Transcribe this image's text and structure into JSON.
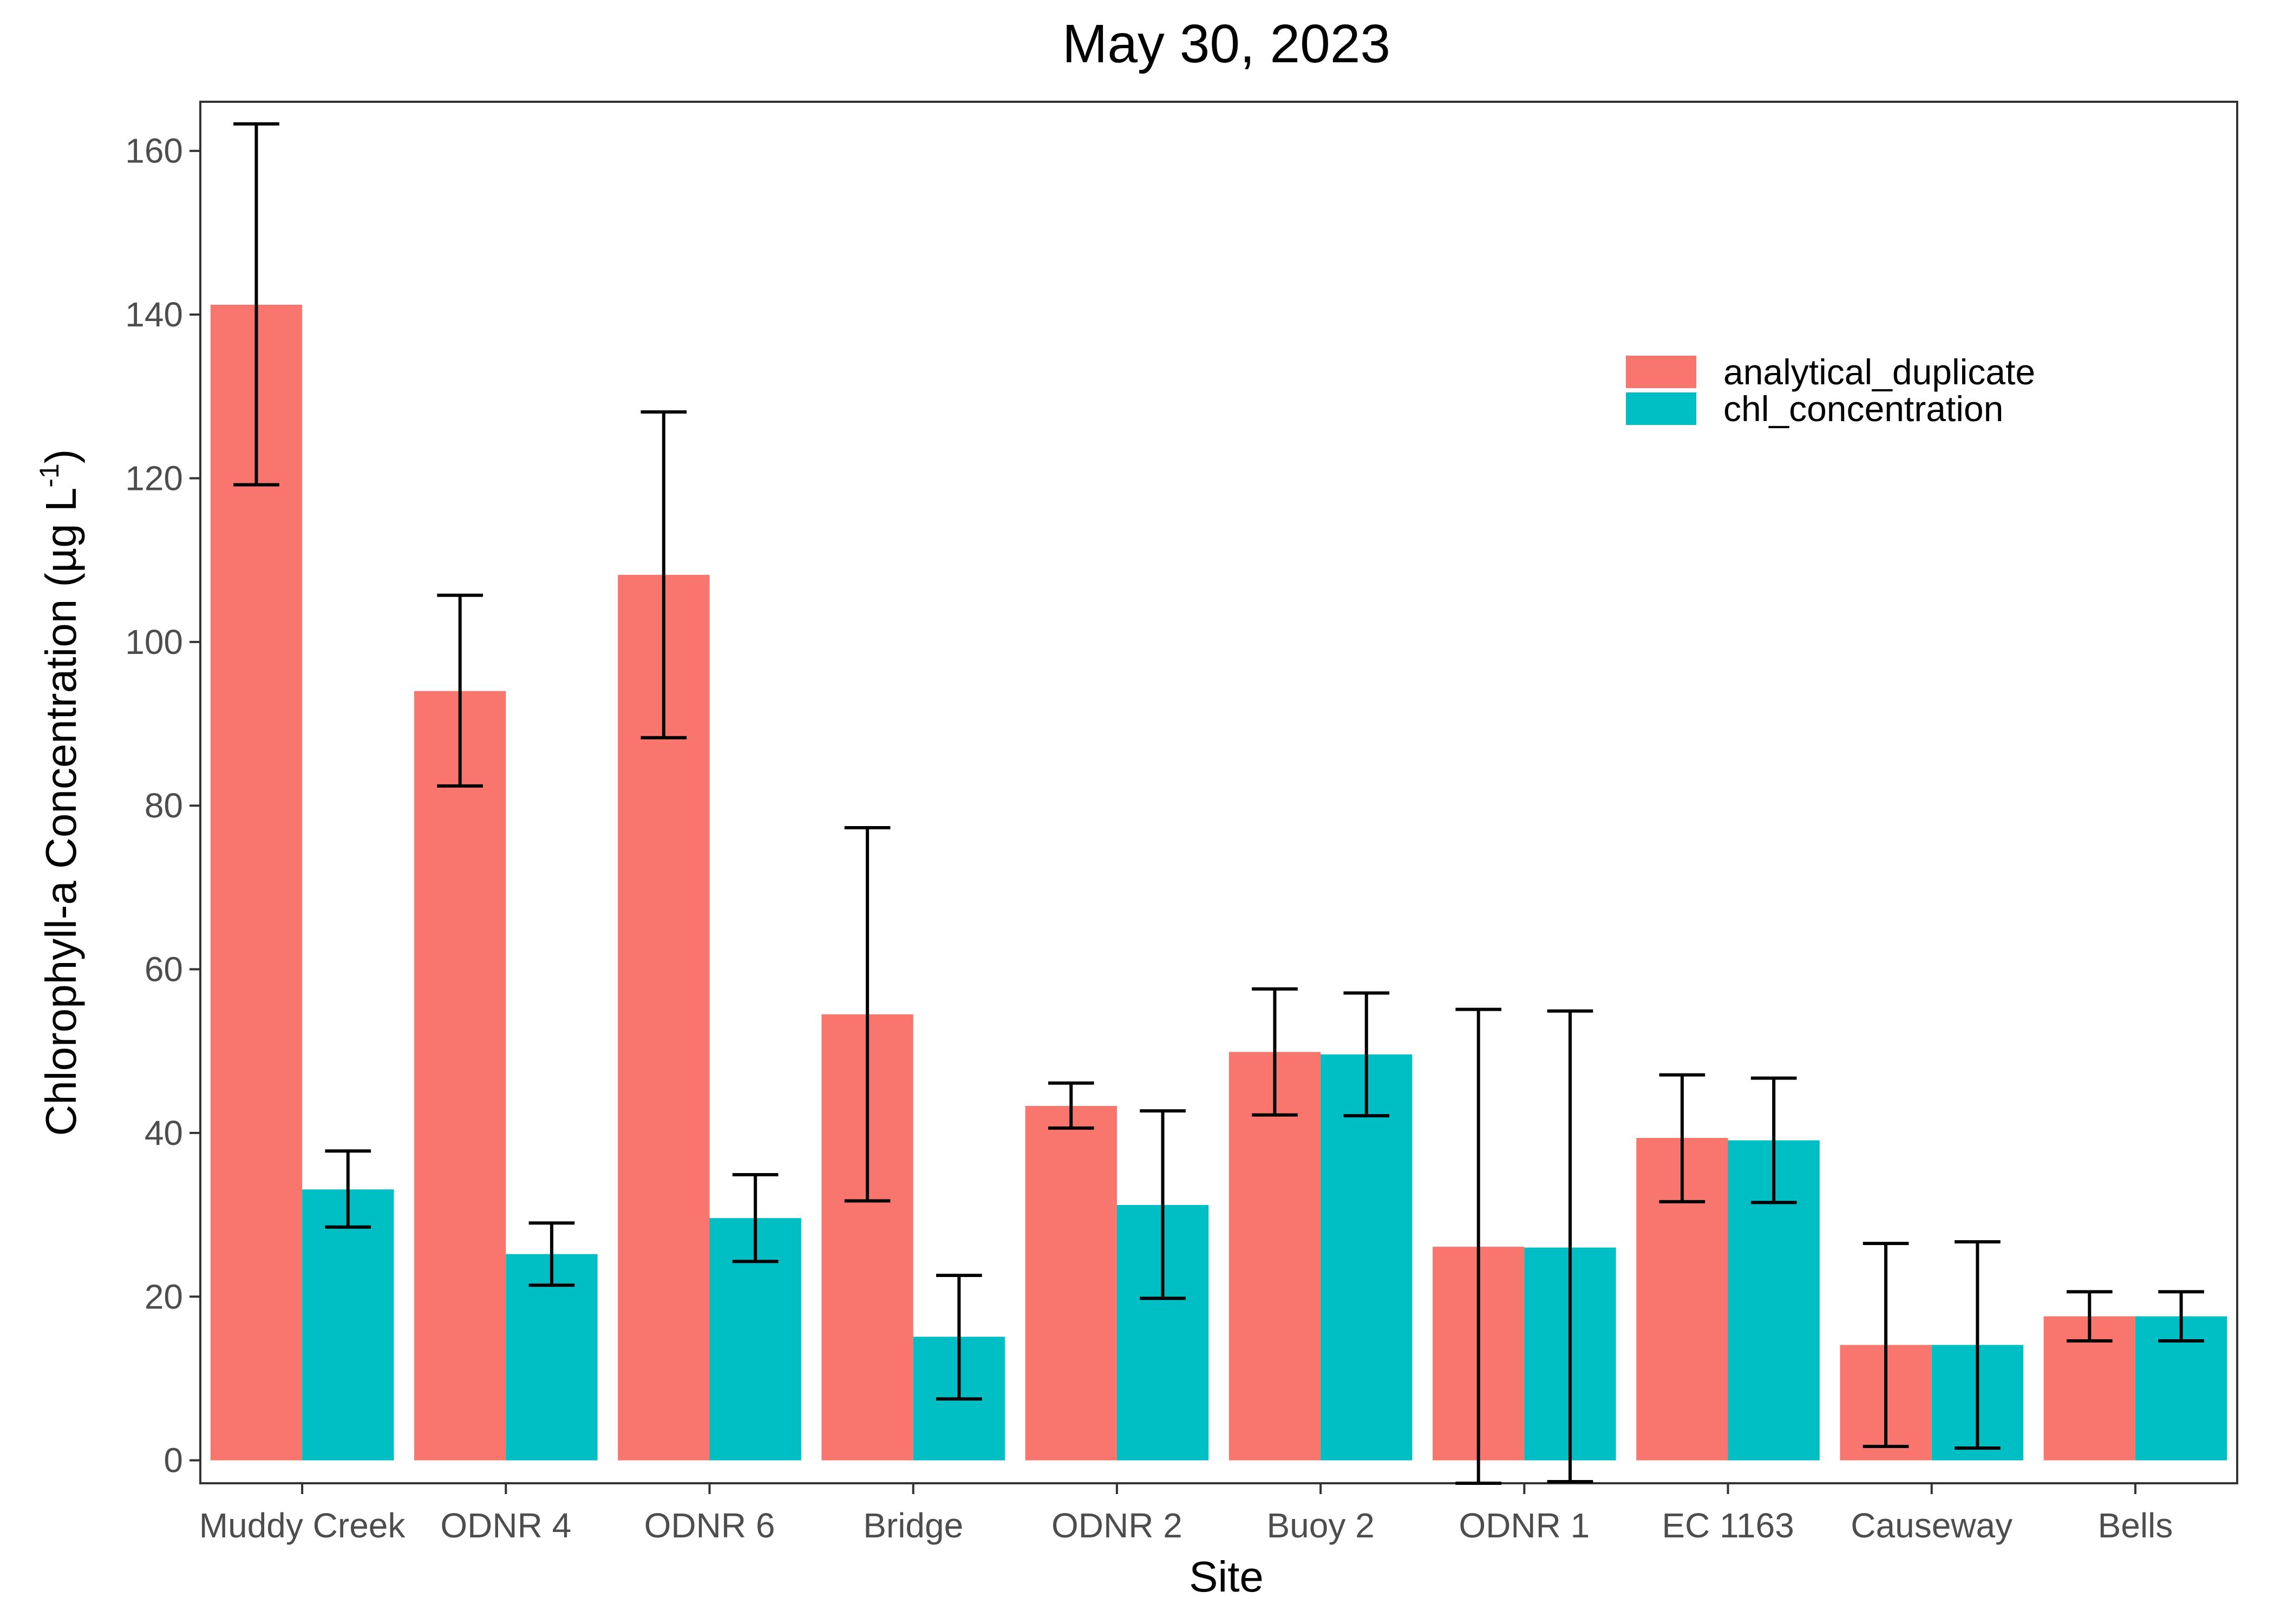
{
  "chart_data": {
    "type": "bar",
    "title": "May 30, 2023",
    "xlabel": "Site",
    "ylabel_main": "Chlorophyll-a Concentration (µg L",
    "ylabel_sup": "-1",
    "ylabel_close": ")",
    "categories": [
      "Muddy Creek",
      "ODNR 4",
      "ODNR 6",
      "Bridge",
      "ODNR 2",
      "Buoy 2",
      "ODNR 1",
      "EC 1163",
      "Causeway",
      "Bells"
    ],
    "series": [
      {
        "name": "analytical_duplicate",
        "color": "#F8766D",
        "values": [
          141.2,
          94.0,
          108.2,
          54.5,
          43.3,
          49.9,
          26.1,
          39.4,
          14.1,
          17.6
        ],
        "error_low": [
          119.2,
          82.4,
          88.3,
          31.7,
          40.6,
          42.2,
          -2.8,
          31.6,
          1.7,
          14.6
        ],
        "error_high": [
          163.3,
          105.7,
          128.1,
          77.3,
          46.1,
          57.6,
          55.1,
          47.1,
          26.5,
          20.6
        ]
      },
      {
        "name": "chl_concentration",
        "color": "#00BFC4",
        "values": [
          33.1,
          25.2,
          29.6,
          15.1,
          31.2,
          49.6,
          26.0,
          39.1,
          14.1,
          17.6
        ],
        "error_low": [
          28.5,
          21.4,
          24.3,
          7.5,
          19.8,
          42.1,
          -2.6,
          31.5,
          1.5,
          14.6
        ],
        "error_high": [
          37.8,
          29.0,
          34.9,
          22.6,
          42.7,
          57.1,
          54.9,
          46.7,
          26.7,
          20.6
        ]
      }
    ],
    "y_ticks": [
      0,
      20,
      40,
      60,
      80,
      100,
      120,
      140,
      160
    ],
    "ylim": [
      -2.8,
      166.0
    ],
    "legend_position": "top-right",
    "grid": false
  }
}
